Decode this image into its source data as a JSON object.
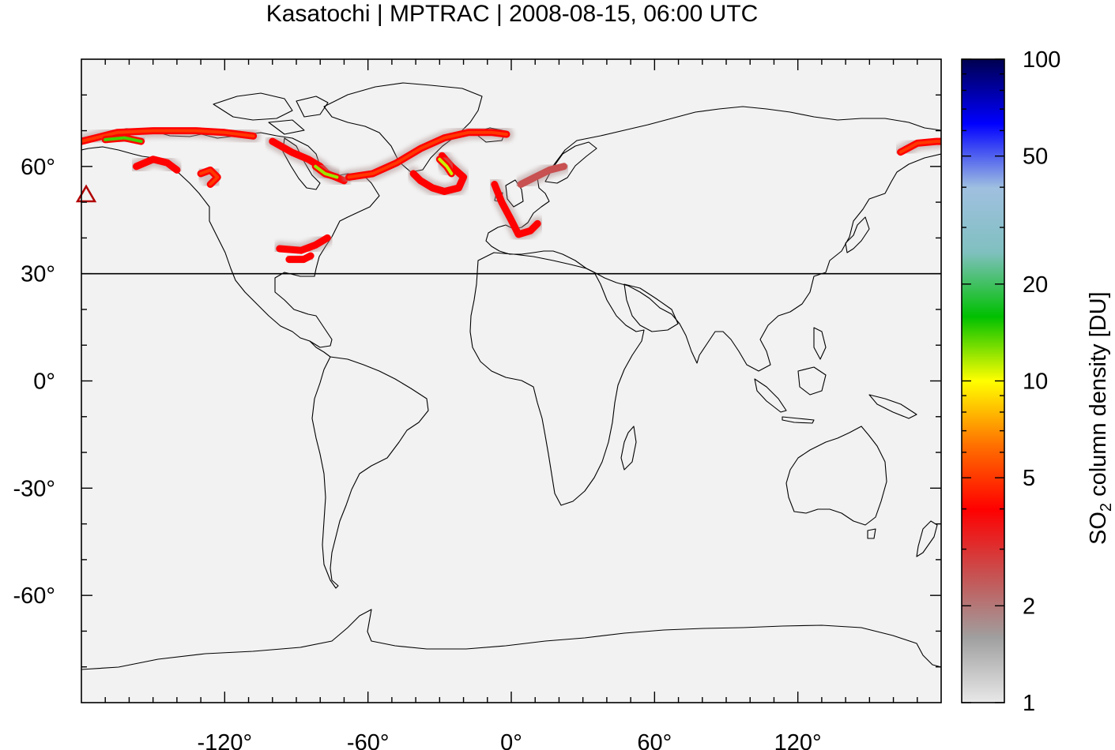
{
  "title": "Kasatochi | MPTRAC | 2008-08-15, 06:00 UTC",
  "chart_data": {
    "type": "heatmap",
    "projection": "equirectangular",
    "xlim": [
      -180,
      180
    ],
    "ylim": [
      -90,
      90
    ],
    "x_ticks": [
      {
        "value": -120,
        "label": "-120°"
      },
      {
        "value": -60,
        "label": "-60°"
      },
      {
        "value": 0,
        "label": "0°"
      },
      {
        "value": 60,
        "label": "60°"
      },
      {
        "value": 120,
        "label": "120°"
      }
    ],
    "y_ticks": [
      {
        "value": 60,
        "label": "60°"
      },
      {
        "value": 30,
        "label": "30°"
      },
      {
        "value": 0,
        "label": "0°"
      },
      {
        "value": -30,
        "label": "-30°"
      },
      {
        "value": -60,
        "label": "-60°"
      }
    ],
    "reference_latitude": 30,
    "volcano_marker": {
      "lon": -178,
      "lat": 52
    },
    "colorbar": {
      "scale": "log",
      "range": [
        1,
        100
      ],
      "ticks": [
        {
          "value": 1,
          "label": "1"
        },
        {
          "value": 2,
          "label": "2"
        },
        {
          "value": 5,
          "label": "5"
        },
        {
          "value": 10,
          "label": "10"
        },
        {
          "value": 20,
          "label": "20"
        },
        {
          "value": 50,
          "label": "50"
        },
        {
          "value": 100,
          "label": "100"
        }
      ],
      "label_main": "SO",
      "label_sub": "2",
      "label_rest": " column density [DU]",
      "colors": [
        "#e8e8e8",
        "#a0a0a0",
        "#c85050",
        "#ff0000",
        "#ff7000",
        "#ffff00",
        "#00c000",
        "#80c0c0",
        "#a0c0e0",
        "#0000ff",
        "#000050"
      ]
    },
    "plumes": [
      {
        "name": "",
        "points": [
          [
            -180,
            67
          ],
          [
            -165,
            69.5
          ],
          [
            -150,
            70
          ],
          [
            -132,
            70
          ],
          [
            -120,
            69.5
          ],
          [
            -108,
            68.5
          ]
        ],
        "value": 5
      },
      {
        "name": "",
        "points": [
          [
            -170,
            67.5
          ],
          [
            -162,
            68
          ],
          [
            -155,
            67
          ]
        ],
        "value": 14
      },
      {
        "name": "",
        "points": [
          [
            -157,
            60
          ],
          [
            -150,
            62
          ],
          [
            -144,
            61
          ],
          [
            -140,
            59
          ]
        ],
        "value": 4
      },
      {
        "name": "",
        "points": [
          [
            -130,
            58
          ],
          [
            -126,
            59
          ],
          [
            -123,
            57
          ],
          [
            -126,
            55
          ]
        ],
        "value": 5
      },
      {
        "name": "",
        "points": [
          [
            -100,
            67
          ],
          [
            -92,
            64
          ],
          [
            -85,
            62
          ],
          [
            -80,
            60
          ],
          [
            -77,
            58
          ],
          [
            -70,
            56
          ]
        ],
        "value": 4
      },
      {
        "name": "",
        "points": [
          [
            -82,
            60
          ],
          [
            -78,
            58
          ],
          [
            -73,
            57
          ]
        ],
        "value": 12
      },
      {
        "name": "",
        "points": [
          [
            -68,
            57
          ],
          [
            -58,
            58
          ],
          [
            -48,
            61
          ],
          [
            -38,
            65
          ],
          [
            -28,
            68
          ],
          [
            -18,
            69.5
          ],
          [
            -8,
            69.5
          ],
          [
            -2,
            69
          ]
        ],
        "value": 5
      },
      {
        "name": "",
        "points": [
          [
            -41,
            58
          ],
          [
            -38,
            56
          ],
          [
            -33,
            54
          ],
          [
            -28,
            53
          ],
          [
            -22,
            54
          ],
          [
            -20,
            57
          ],
          [
            -25,
            60
          ],
          [
            -29,
            63
          ]
        ],
        "value": 4
      },
      {
        "name": "",
        "points": [
          [
            -30,
            62
          ],
          [
            -27,
            60
          ],
          [
            -25,
            58
          ]
        ],
        "value": 11
      },
      {
        "name": "",
        "points": [
          [
            -7,
            55
          ],
          [
            -4,
            50
          ],
          [
            0,
            45
          ],
          [
            3,
            41
          ],
          [
            8,
            42
          ],
          [
            11,
            44
          ]
        ],
        "value": 4
      },
      {
        "name": "",
        "points": [
          [
            4,
            55
          ],
          [
            10,
            57
          ],
          [
            16,
            59
          ],
          [
            22,
            60
          ]
        ],
        "value": 2.5
      },
      {
        "name": "",
        "points": [
          [
            -97,
            37
          ],
          [
            -88,
            36.5
          ],
          [
            -82,
            38
          ],
          [
            -77,
            40
          ]
        ],
        "value": 4
      },
      {
        "name": "",
        "points": [
          [
            -93,
            34
          ],
          [
            -87,
            34
          ],
          [
            -84,
            35
          ]
        ],
        "value": 4
      },
      {
        "name": "",
        "points": [
          [
            163,
            64
          ],
          [
            170,
            66.5
          ],
          [
            178,
            67
          ],
          [
            180,
            67
          ]
        ],
        "value": 5
      }
    ]
  }
}
